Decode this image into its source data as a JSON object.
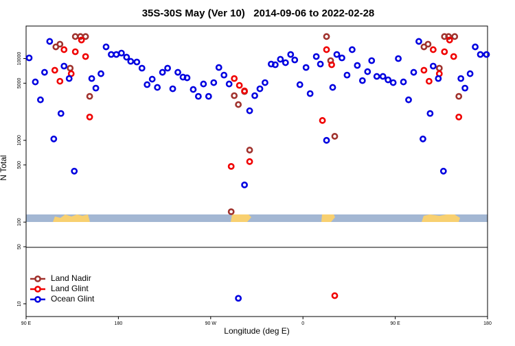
{
  "chart_data": {
    "type": "scatter",
    "title": "35S-30S May (Ver 10)   2014-09-06 to 2022-02-28",
    "xlabel": "Longitude (deg E)",
    "ylabel": "N Total",
    "xlim": [
      90,
      540
    ],
    "xticks": [
      {
        "value": 90,
        "label": "90 E"
      },
      {
        "value": 180,
        "label": "180"
      },
      {
        "value": 270,
        "label": "90 W"
      },
      {
        "value": 360,
        "label": "0"
      },
      {
        "value": 450,
        "label": "90 E"
      },
      {
        "value": 540,
        "label": "180"
      }
    ],
    "ylim": [
      7,
      25000
    ],
    "yticks": [
      10,
      50,
      100,
      500,
      1000,
      5000,
      10000
    ],
    "log": true,
    "legend": "lower left",
    "series": [
      {
        "name": "Land Nadir",
        "color": "#a0322d",
        "x": [
          119,
          123,
          133,
          138,
          143,
          148,
          152,
          290,
          293,
          297,
          303,
          308,
          383,
          387,
          391,
          478,
          482,
          493,
          498,
          502,
          508,
          512
        ],
        "values": [
          13900,
          15000,
          7630,
          18600,
          18600,
          18600,
          3450,
          134,
          3520,
          2740,
          3950,
          760,
          18600,
          9440,
          1120,
          13900,
          15000,
          7630,
          18600,
          18600,
          18600,
          3450
        ]
      },
      {
        "name": "Land Glint",
        "color": "#f00000",
        "x": [
          118,
          123,
          127,
          134,
          138,
          144,
          148,
          152,
          290,
          293,
          298,
          303,
          308,
          379,
          383,
          388,
          391,
          478,
          483,
          487,
          493,
          498,
          503,
          507,
          512
        ],
        "values": [
          7200,
          5280,
          12860,
          6530,
          12130,
          16860,
          10590,
          1930,
          480,
          5700,
          4700,
          4030,
          550,
          1750,
          12860,
          8400,
          12.6,
          7200,
          5280,
          12860,
          6530,
          12130,
          16860,
          10590,
          1930
        ]
      },
      {
        "name": "Ocean Glint",
        "color": "#0000e0",
        "x": [
          93,
          99,
          104,
          108,
          113,
          117,
          124,
          127,
          132,
          137,
          154,
          158,
          163,
          168,
          173,
          178,
          183,
          188,
          192,
          198,
          203,
          208,
          213,
          218,
          223,
          228,
          233,
          238,
          243,
          247,
          253,
          258,
          263,
          268,
          273,
          278,
          283,
          288,
          303,
          308,
          313,
          318,
          323,
          329,
          333,
          338,
          343,
          348,
          352,
          357,
          363,
          367,
          373,
          377,
          383,
          389,
          393,
          398,
          403,
          408,
          413,
          418,
          423,
          427,
          432,
          438,
          443,
          448,
          453,
          458,
          463,
          468,
          473,
          477,
          484,
          487,
          492,
          497,
          514,
          518,
          523,
          528,
          533,
          539,
          297
        ],
        "values": [
          10190,
          5180,
          3130,
          6790,
          16220,
          1040,
          2130,
          8090,
          5700,
          420,
          5700,
          4350,
          6530,
          13900,
          11220,
          11220,
          11670,
          10400,
          9250,
          9080,
          7630,
          4800,
          5600,
          4440,
          6790,
          7630,
          4270,
          6790,
          5930,
          5820,
          4190,
          3450,
          4890,
          3450,
          5080,
          7780,
          6280,
          4890,
          285,
          2300,
          3520,
          4270,
          5080,
          8570,
          8400,
          9810,
          8910,
          11220,
          9620,
          4800,
          7780,
          3730,
          10590,
          8570,
          1000,
          4440,
          11220,
          10190,
          6280,
          12860,
          8240,
          5380,
          6920,
          9440,
          6050,
          6050,
          5490,
          5080,
          10000,
          5180,
          3130,
          6790,
          16220,
          1040,
          2130,
          8090,
          5700,
          420,
          5700,
          4350,
          6530,
          13900,
          11220,
          11220,
          11.7
        ]
      }
    ]
  }
}
